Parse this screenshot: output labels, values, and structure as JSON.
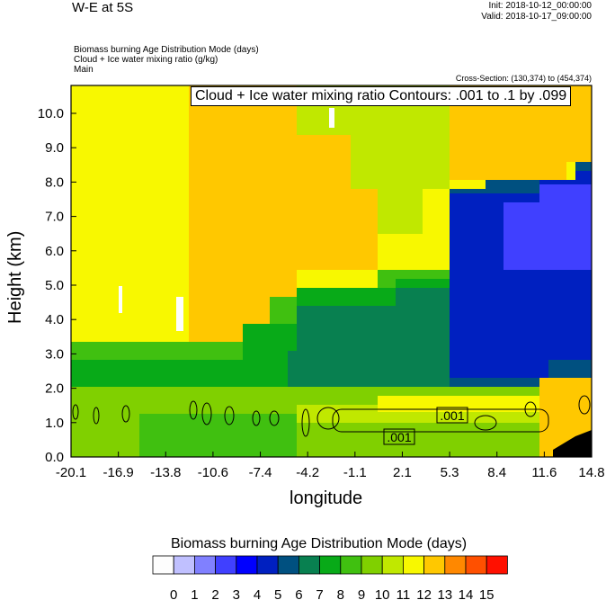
{
  "header": {
    "title": "W-E at 5S",
    "init": "Init: 2018-10-12_00:00:00",
    "valid": "Valid: 2018-10-17_09:00:00",
    "subtitles": [
      "Biomass burning Age Distribution Mode    (days)",
      "Cloud + Ice water mixing ratio    (g/kg)",
      "Main"
    ],
    "cross_section": "Cross-Section: (130,374) to (454,374)"
  },
  "chart_data": {
    "type": "heatmap",
    "title": "W-E at 5S",
    "contour_title": "Cloud + Ice water mixing ratio Contours: .001 to .1 by .099",
    "contour_labels": [
      ".001",
      ".001"
    ],
    "xlabel": "longitude",
    "ylabel": "Height (km)",
    "xlim": [
      -20.1,
      14.8
    ],
    "ylim": [
      0,
      10.8
    ],
    "xticks": [
      "-20.1",
      "-16.9",
      "-13.8",
      "-10.6",
      "-7.4",
      "-4.2",
      "-1.1",
      "2.1",
      "5.3",
      "8.4",
      "11.6",
      "14.8"
    ],
    "yticks": [
      "0.0",
      "1.0",
      "2.0",
      "3.0",
      "4.0",
      "5.0",
      "6.0",
      "7.0",
      "8.0",
      "9.0",
      "10.0"
    ],
    "colorbar": {
      "title": "Biomass burning Age Distribution Mode  (days)",
      "labels": [
        "0",
        "1",
        "2",
        "3",
        "4",
        "5",
        "6",
        "7",
        "8",
        "9",
        "10",
        "11",
        "12",
        "13",
        "14",
        "15"
      ],
      "colors": [
        "#fdfdfd",
        "#c0c0ff",
        "#8080ff",
        "#4040ff",
        "#0000ff",
        "#0020c0",
        "#005080",
        "#088050",
        "#08aa18",
        "#40c010",
        "#80d000",
        "#c0e800",
        "#f8f800",
        "#ffc800",
        "#ff8800",
        "#ff5000",
        "#ff1000"
      ]
    }
  }
}
